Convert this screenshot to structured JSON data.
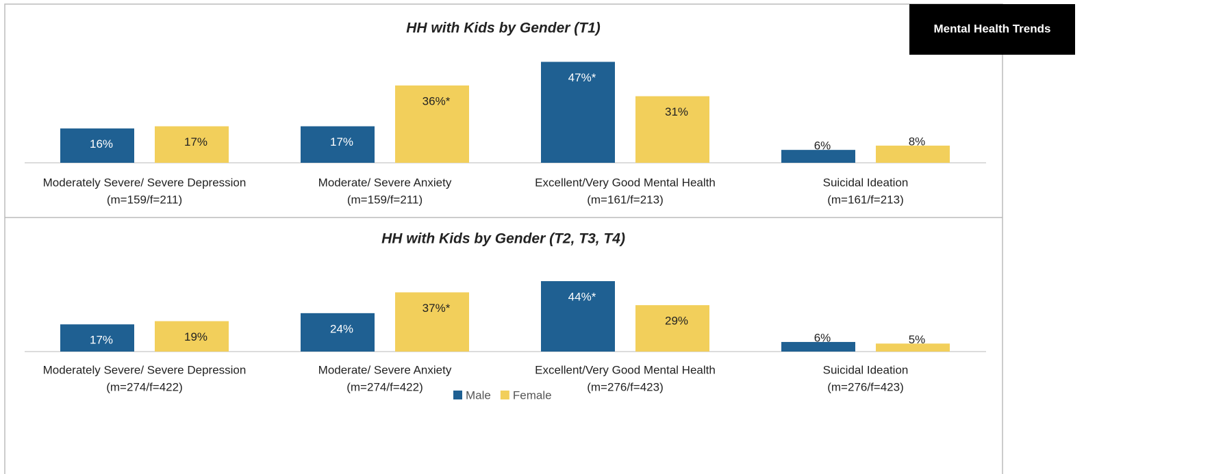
{
  "tab": "Mental Health Trends",
  "chart_data": [
    {
      "type": "bar",
      "title": "HH with Kids by Gender (T1)",
      "categories": [
        [
          "Moderately Severe/ Severe Depression",
          "(m=159/f=211)"
        ],
        [
          "Moderate/ Severe Anxiety",
          "(m=159/f=211)"
        ],
        [
          "Excellent/Very Good Mental Health",
          "(m=161/f=213)"
        ],
        [
          "Suicidal Ideation",
          "(m=161/f=213)"
        ]
      ],
      "series": [
        {
          "name": "Male",
          "color": "#1f6092",
          "values": [
            16,
            17,
            47,
            6
          ],
          "value_labels": [
            "16%",
            "17%",
            "47%*",
            "6%"
          ]
        },
        {
          "name": "Female",
          "color": "#f2cf5b",
          "values": [
            17,
            36,
            31,
            8
          ],
          "value_labels": [
            "17%",
            "36%*",
            "31%",
            "8%"
          ]
        }
      ],
      "ylim": [
        0,
        50
      ]
    },
    {
      "type": "bar",
      "title": "HH with Kids by Gender (T2, T3, T4)",
      "categories": [
        [
          "Moderately Severe/ Severe Depression",
          "(m=274/f=422)"
        ],
        [
          "Moderate/ Severe Anxiety",
          "(m=274/f=422)"
        ],
        [
          "Excellent/Very Good Mental Health",
          "(m=276/f=423)"
        ],
        [
          "Suicidal Ideation",
          "(m=276/f=423)"
        ]
      ],
      "series": [
        {
          "name": "Male",
          "color": "#1f6092",
          "values": [
            17,
            24,
            44,
            6
          ],
          "value_labels": [
            "17%",
            "24%",
            "44%*",
            "6%"
          ]
        },
        {
          "name": "Female",
          "color": "#f2cf5b",
          "values": [
            19,
            37,
            29,
            5
          ],
          "value_labels": [
            "19%",
            "37%*",
            "29%",
            "5%"
          ]
        }
      ],
      "ylim": [
        0,
        50
      ],
      "legend": "bottom"
    }
  ]
}
